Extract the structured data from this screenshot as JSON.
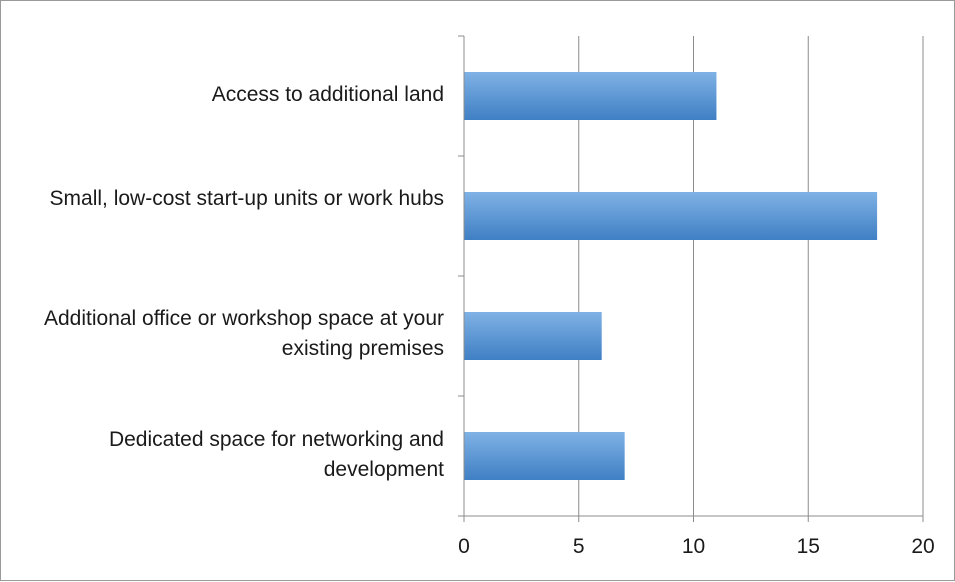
{
  "chart_data": {
    "type": "bar",
    "orientation": "horizontal",
    "title": "",
    "xlabel": "",
    "ylabel": "",
    "categories": [
      "Access to additional land",
      "Small, low-cost start-up units or work hubs",
      "Additional office or workshop space at your existing premises",
      "Dedicated space for networking and development"
    ],
    "values": [
      11,
      18,
      6,
      7
    ],
    "xlim": [
      0,
      20
    ],
    "xticks": [
      "0",
      "5",
      "10",
      "15",
      "20"
    ],
    "grid": "vertical",
    "legend": "none",
    "colors": {
      "bar_light": "#7fb2e5",
      "bar_dark": "#3f7fc4",
      "grid": "#8c8c8c",
      "axis": "#8c8c8c"
    }
  }
}
